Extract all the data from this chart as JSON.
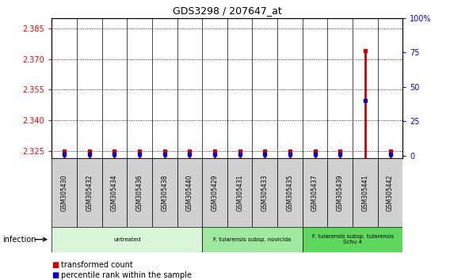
{
  "title": "GDS3298 / 207647_at",
  "samples": [
    "GSM305430",
    "GSM305432",
    "GSM305434",
    "GSM305436",
    "GSM305438",
    "GSM305440",
    "GSM305429",
    "GSM305431",
    "GSM305433",
    "GSM305435",
    "GSM305437",
    "GSM305439",
    "GSM305441",
    "GSM305442"
  ],
  "transformed_count": [
    2.325,
    2.325,
    2.325,
    2.325,
    2.325,
    2.325,
    2.325,
    2.325,
    2.325,
    2.325,
    2.325,
    2.325,
    2.374,
    2.325
  ],
  "percentile_rank": [
    1,
    1,
    1,
    1,
    1,
    1,
    1,
    1,
    1,
    1,
    1,
    1,
    40,
    1
  ],
  "ylim_left": [
    2.3215,
    2.39
  ],
  "ylim_right": [
    -2,
    100
  ],
  "yticks_left": [
    2.325,
    2.34,
    2.355,
    2.37,
    2.385
  ],
  "yticks_right": [
    0,
    25,
    50,
    75,
    100
  ],
  "groups": [
    {
      "label": "untreated",
      "start": 0,
      "end": 6,
      "color": "#d8f5d8"
    },
    {
      "label": "F. tularensis subsp. novicida",
      "start": 6,
      "end": 10,
      "color": "#a0e8a0"
    },
    {
      "label": "F. tularensis subsp. tularensis\nSchu 4",
      "start": 10,
      "end": 14,
      "color": "#60d860"
    }
  ],
  "bar_color": "#cc0000",
  "dot_color": "#0000cc",
  "infection_label": "infection",
  "legend_red": "transformed count",
  "legend_blue": "percentile rank within the sample",
  "sample_box_color": "#d0d0d0"
}
